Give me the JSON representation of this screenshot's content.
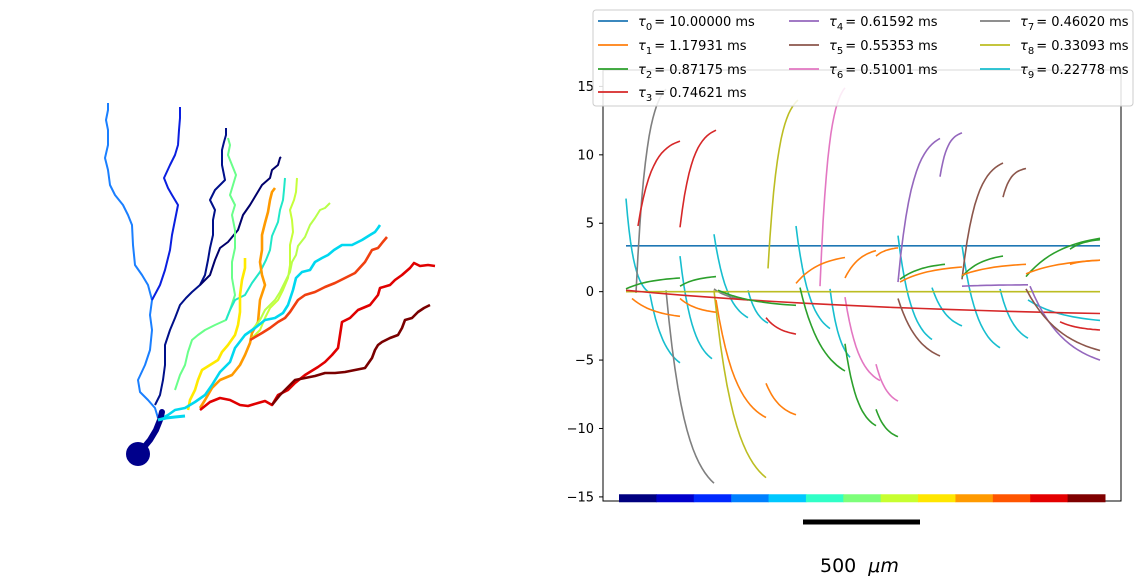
{
  "chart_data": [
    {
      "type": "tree",
      "description_free": true,
      "branches": [
        {
          "color": "#1a7fff"
        },
        {
          "color": "#0a1fe0"
        },
        {
          "color": "#00108a"
        },
        {
          "color": "#00006b"
        },
        {
          "color": "#69ff8a"
        },
        {
          "color": "#20e8c8"
        },
        {
          "color": "#ff9a00"
        },
        {
          "color": "#c6ff3a"
        },
        {
          "color": "#ffea00"
        },
        {
          "color": "#b8ff4a"
        },
        {
          "color": "#00d8f0"
        },
        {
          "color": "#f04010"
        },
        {
          "color": "#e00000"
        },
        {
          "color": "#7a0000"
        }
      ],
      "soma_color": "#00008b"
    },
    {
      "type": "line",
      "ylim": [
        -15.3,
        16.2
      ],
      "yticks": [
        -15,
        -10,
        -5,
        0,
        5,
        10,
        15
      ],
      "ytick_labels": [
        "−15",
        "−10",
        "−5",
        "0",
        "5",
        "10",
        "15"
      ],
      "legend": {
        "placement": "top",
        "entries": [
          {
            "sym": "τ",
            "sub": "0",
            "value": "= 10.00000 ms",
            "color": "#1f77b4"
          },
          {
            "sym": "τ",
            "sub": "1",
            "value": "= 1.17931 ms",
            "color": "#ff7f0e"
          },
          {
            "sym": "τ",
            "sub": "2",
            "value": "= 0.87175 ms",
            "color": "#2ca02c"
          },
          {
            "sym": "τ",
            "sub": "3",
            "value": "= 0.74621 ms",
            "color": "#d62728"
          },
          {
            "sym": "τ",
            "sub": "4",
            "value": "= 0.61592 ms",
            "color": "#9467bd"
          },
          {
            "sym": "τ",
            "sub": "5",
            "value": "= 0.55353 ms",
            "color": "#8c564b"
          },
          {
            "sym": "τ",
            "sub": "6",
            "value": "= 0.51001 ms",
            "color": "#e377c2"
          },
          {
            "sym": "τ",
            "sub": "7",
            "value": "= 0.46020 ms",
            "color": "#7f7f7f"
          },
          {
            "sym": "τ",
            "sub": "8",
            "value": "= 0.33093 ms",
            "color": "#bcbd22"
          },
          {
            "sym": "τ",
            "sub": "9",
            "value": "= 0.22778 ms",
            "color": "#17becf"
          }
        ]
      },
      "colorbar": [
        "#00007f",
        "#0000cc",
        "#0028ff",
        "#0080ff",
        "#00c8ff",
        "#30ffc7",
        "#7dff7a",
        "#c7ff30",
        "#ffe600",
        "#ff9a00",
        "#ff5500",
        "#e40000",
        "#7f0000"
      ],
      "scalebar": {
        "length_label": "500",
        "unit_label": "μm"
      }
    }
  ]
}
